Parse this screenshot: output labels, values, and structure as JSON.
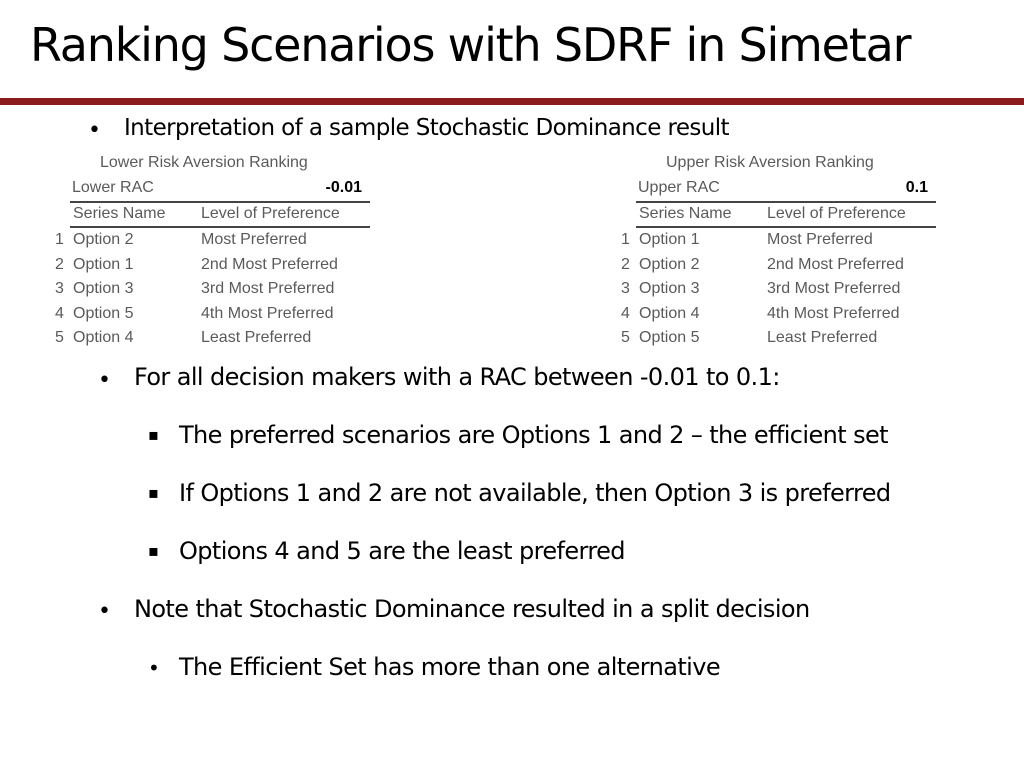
{
  "slide": {
    "title": "Ranking Scenarios with SDRF in Simetar",
    "accent_color": "#8b1a1a"
  },
  "intro_bullet": {
    "symbol": "•",
    "text": "Interpretation of a sample Stochastic Dominance result"
  },
  "tables": {
    "lower": {
      "heading": "Lower Risk Aversion Ranking",
      "rac_label": "Lower RAC",
      "rac_value": "-0.01",
      "col_series": "Series Name",
      "col_level": "Level of Preference",
      "rows": [
        {
          "rank": "1",
          "series": "Option 2",
          "level": "Most Preferred"
        },
        {
          "rank": "2",
          "series": "Option 1",
          "level": "2nd Most Preferred"
        },
        {
          "rank": "3",
          "series": "Option 3",
          "level": "3rd Most Preferred"
        },
        {
          "rank": "4",
          "series": "Option 5",
          "level": "4th Most Preferred"
        },
        {
          "rank": "5",
          "series": "Option 4",
          "level": "Least Preferred"
        }
      ]
    },
    "upper": {
      "heading": "Upper Risk Aversion Ranking",
      "rac_label": "Upper RAC",
      "rac_value": "0.1",
      "col_series": "Series Name",
      "col_level": "Level of Preference",
      "rows": [
        {
          "rank": "1",
          "series": "Option 1",
          "level": "Most Preferred"
        },
        {
          "rank": "2",
          "series": "Option 2",
          "level": "2nd Most Preferred"
        },
        {
          "rank": "3",
          "series": "Option 3",
          "level": "3rd Most Preferred"
        },
        {
          "rank": "4",
          "series": "Option 4",
          "level": "4th Most Preferred"
        },
        {
          "rank": "5",
          "series": "Option 5",
          "level": "Least Preferred"
        }
      ]
    }
  },
  "bullets": [
    {
      "symbol": "•",
      "text": "For all decision makers with a RAC between -0.01 to 0.1:"
    },
    {
      "symbol": "▪",
      "text": "The preferred scenarios are Options 1 and 2 – the efficient set"
    },
    {
      "symbol": "▪",
      "text": "If Options 1 and 2 are not available, then Option 3 is preferred"
    },
    {
      "symbol": "▪",
      "text": "Options 4 and 5 are the least preferred"
    },
    {
      "symbol": "•",
      "text": "Note that Stochastic Dominance resulted in a split decision"
    },
    {
      "symbol": "•",
      "text": "The Efficient Set has more than one alternative"
    }
  ]
}
